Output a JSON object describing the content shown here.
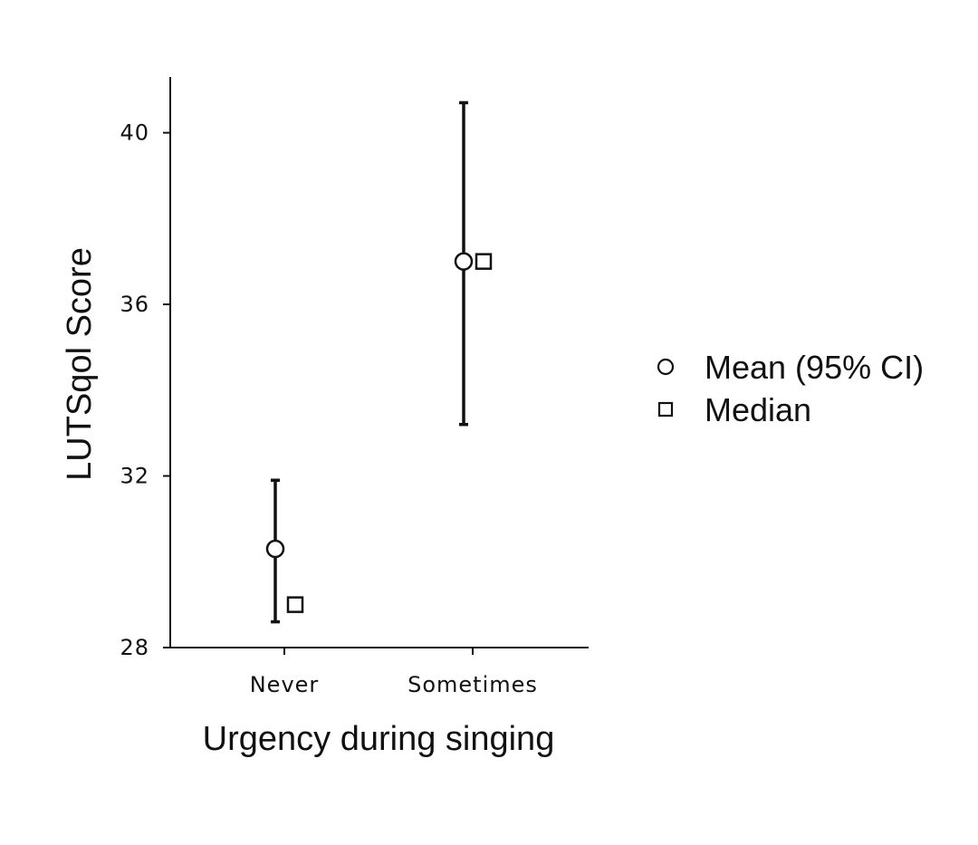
{
  "chart_data": {
    "type": "scatter",
    "title": "",
    "xlabel": "Urgency during singing",
    "ylabel": "LUTSqol Score",
    "categories": [
      "Never",
      "Sometimes"
    ],
    "ylim": [
      28,
      41.3
    ],
    "yticks": [
      28,
      32,
      36,
      40
    ],
    "grid": false,
    "legend_position": "right",
    "series": [
      {
        "name": "Mean (95% CI)",
        "marker": "circle",
        "values": [
          30.3,
          37.0
        ],
        "ci_lower": [
          28.6,
          33.2
        ],
        "ci_upper": [
          31.9,
          40.7
        ]
      },
      {
        "name": "Median",
        "marker": "square",
        "values": [
          29.0,
          37.0
        ]
      }
    ],
    "colors": {
      "ink": "#111111",
      "marker_fill": "#ffffff"
    }
  }
}
